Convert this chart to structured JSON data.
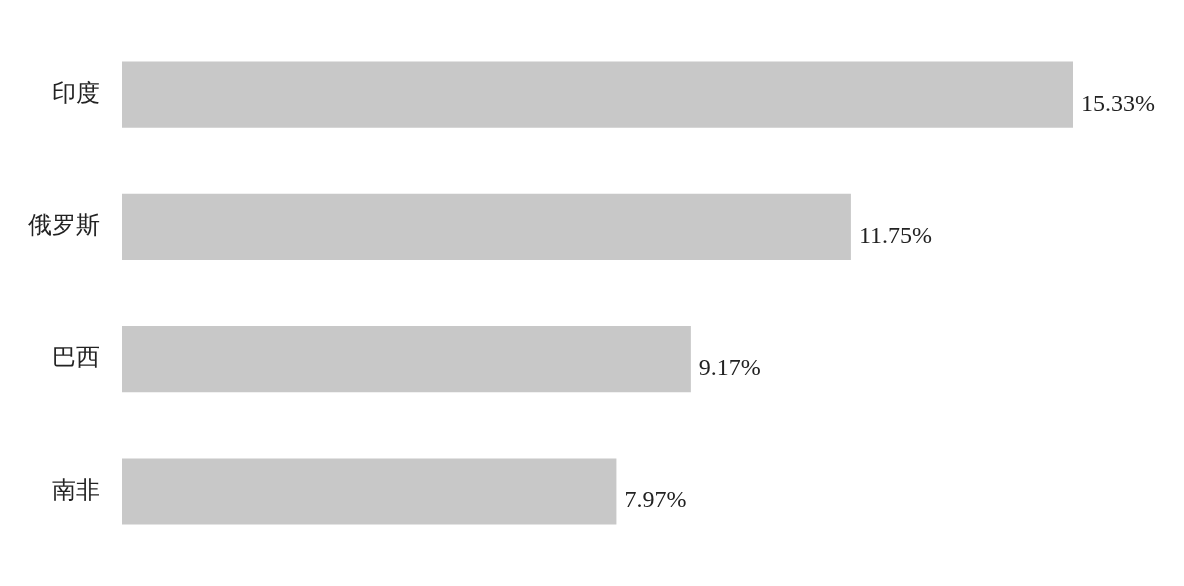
{
  "chart_data": {
    "type": "bar",
    "orientation": "horizontal",
    "categories": [
      "印度",
      "俄罗斯",
      "巴西",
      "南非"
    ],
    "series": [
      {
        "color": "#c8c8c8",
        "values": [
          15.33,
          11.75,
          9.17,
          7.97
        ]
      }
    ],
    "value_labels": [
      "15.33%",
      "11.75%",
      "9.17%",
      "7.97%"
    ],
    "data_labels": true,
    "legend": false,
    "tick_labels": "y"
  }
}
